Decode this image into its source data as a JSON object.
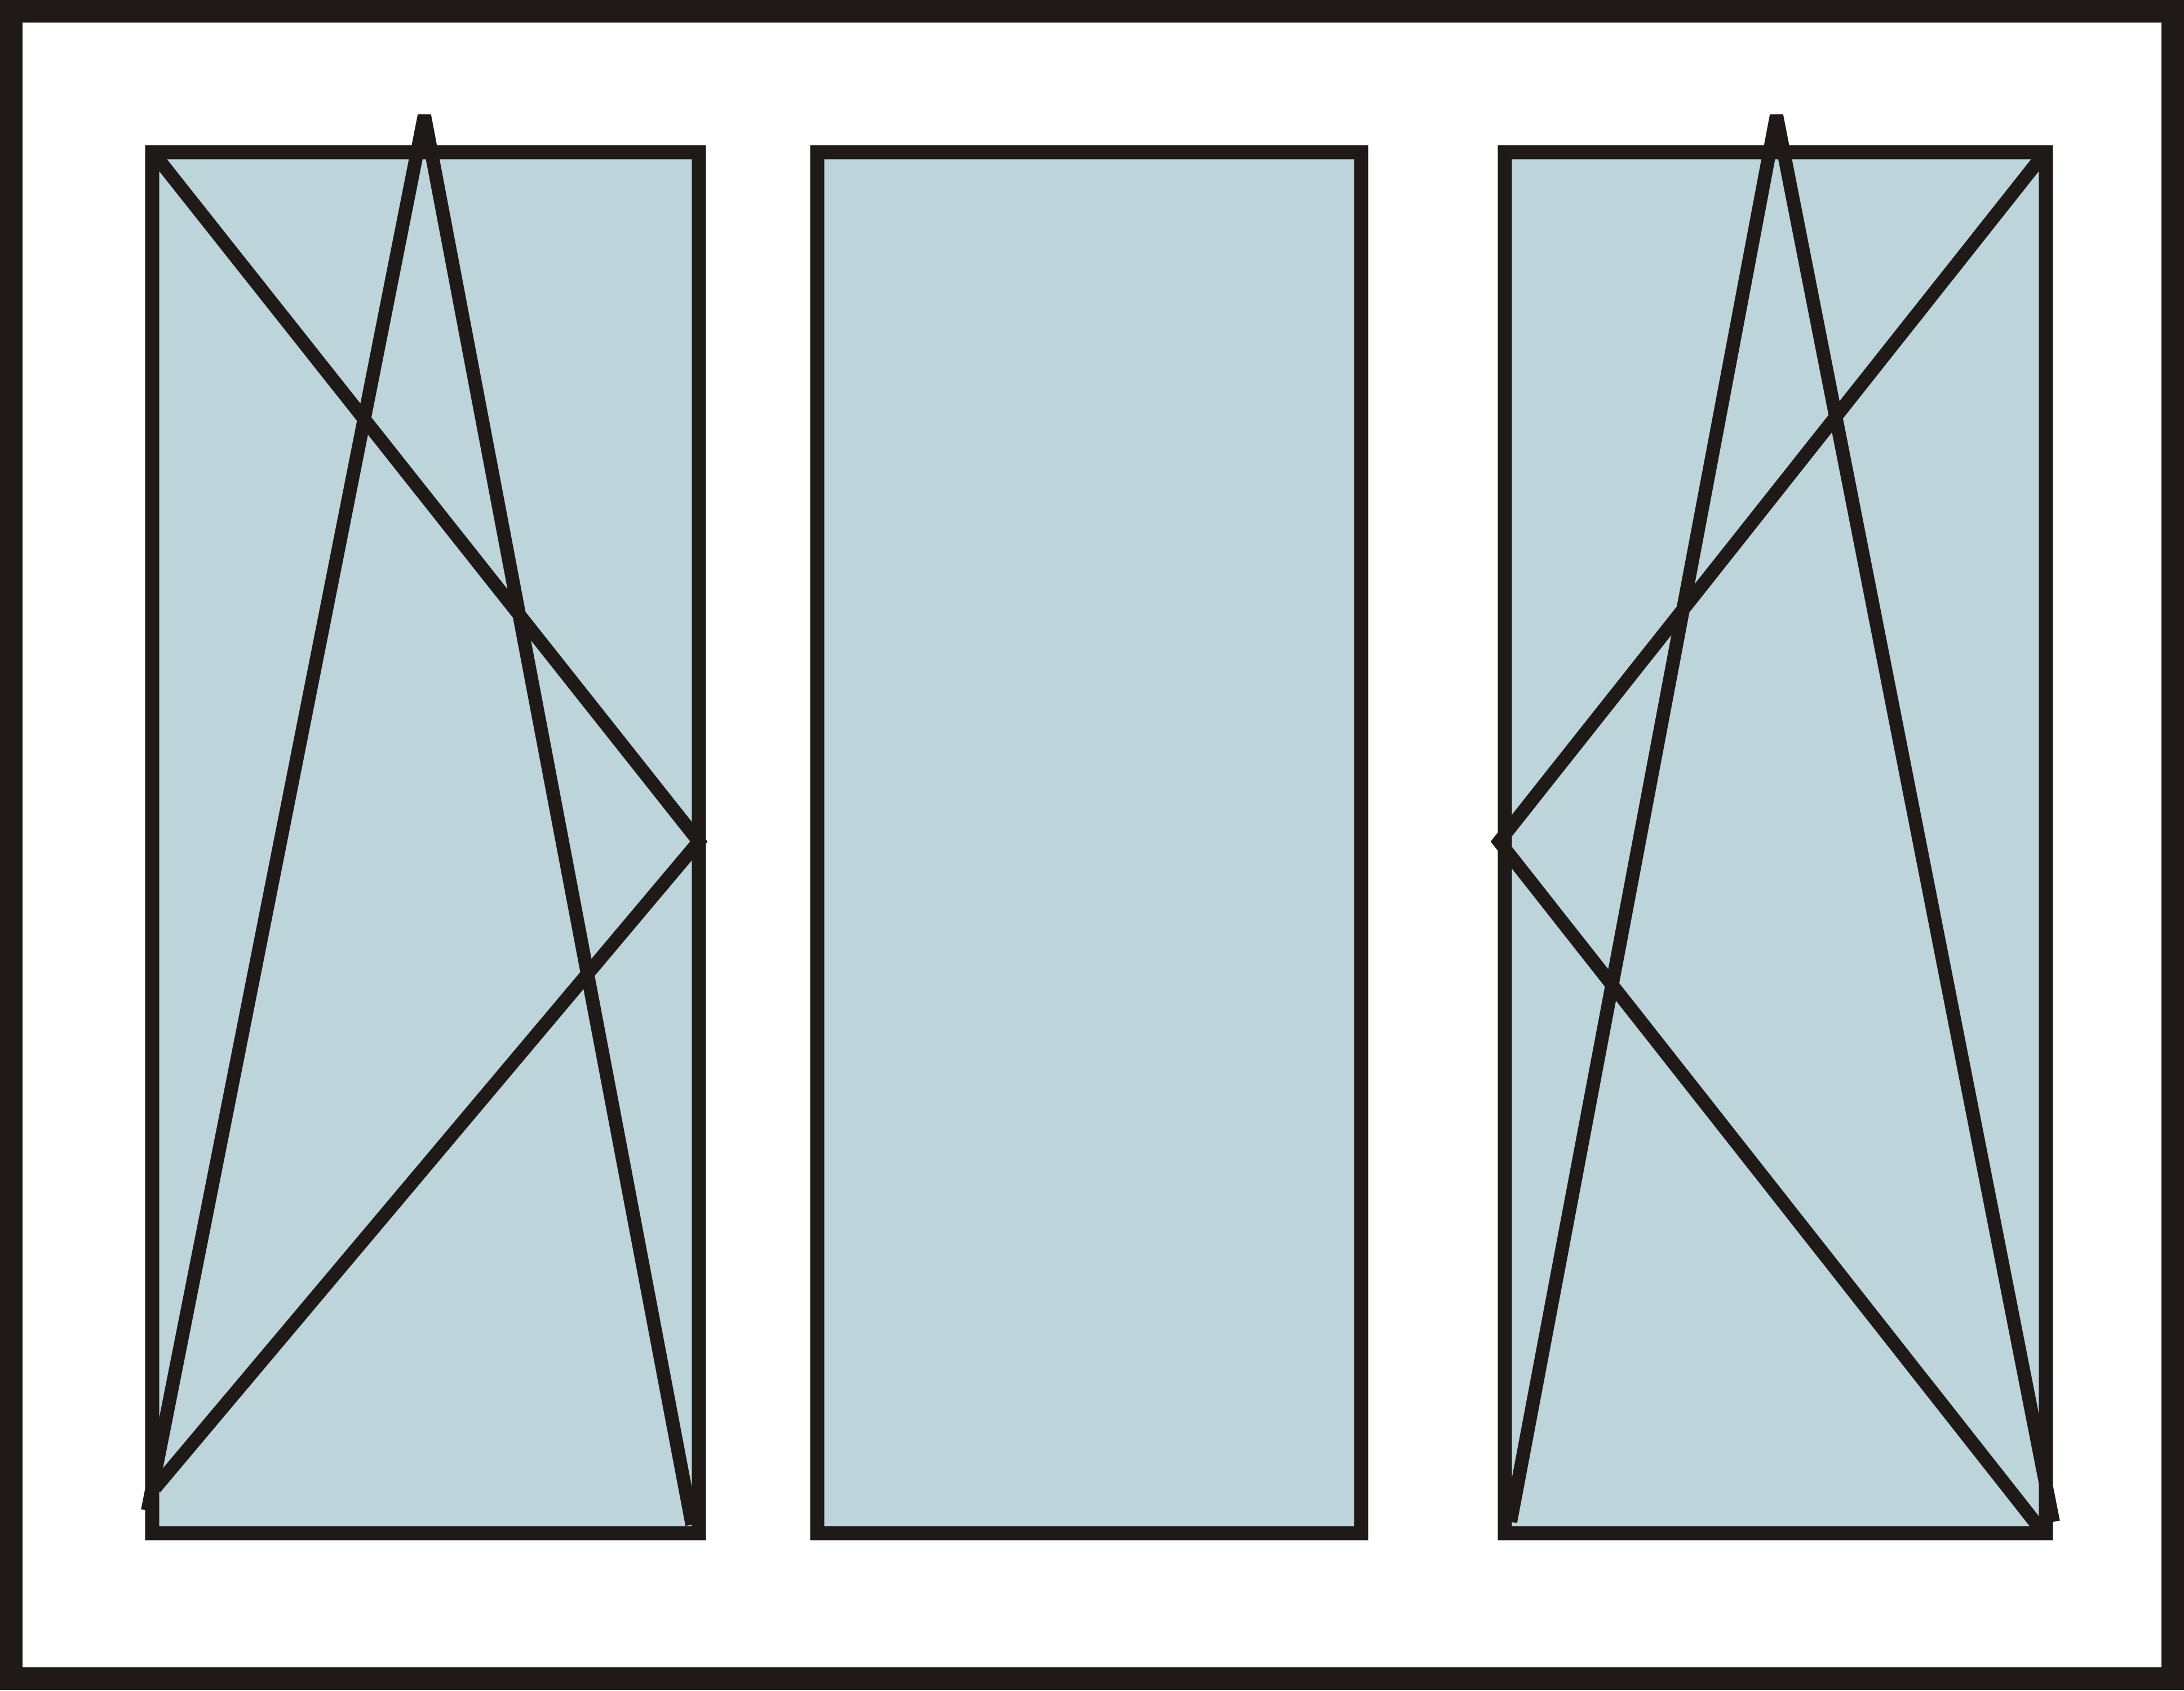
{
  "colors": {
    "background": "#ffffff",
    "frame_stroke": "#1f1a17",
    "glass_fill": "#bdd4da"
  },
  "window": {
    "sashes": [
      {
        "id": "left",
        "type": "tilt-and-turn",
        "opening_marks": [
          "tilt",
          "turn"
        ],
        "hinge_side": "left"
      },
      {
        "id": "center",
        "type": "fixed",
        "opening_marks": []
      },
      {
        "id": "right",
        "type": "tilt-and-turn",
        "opening_marks": [
          "tilt",
          "turn"
        ],
        "hinge_side": "right"
      }
    ]
  }
}
